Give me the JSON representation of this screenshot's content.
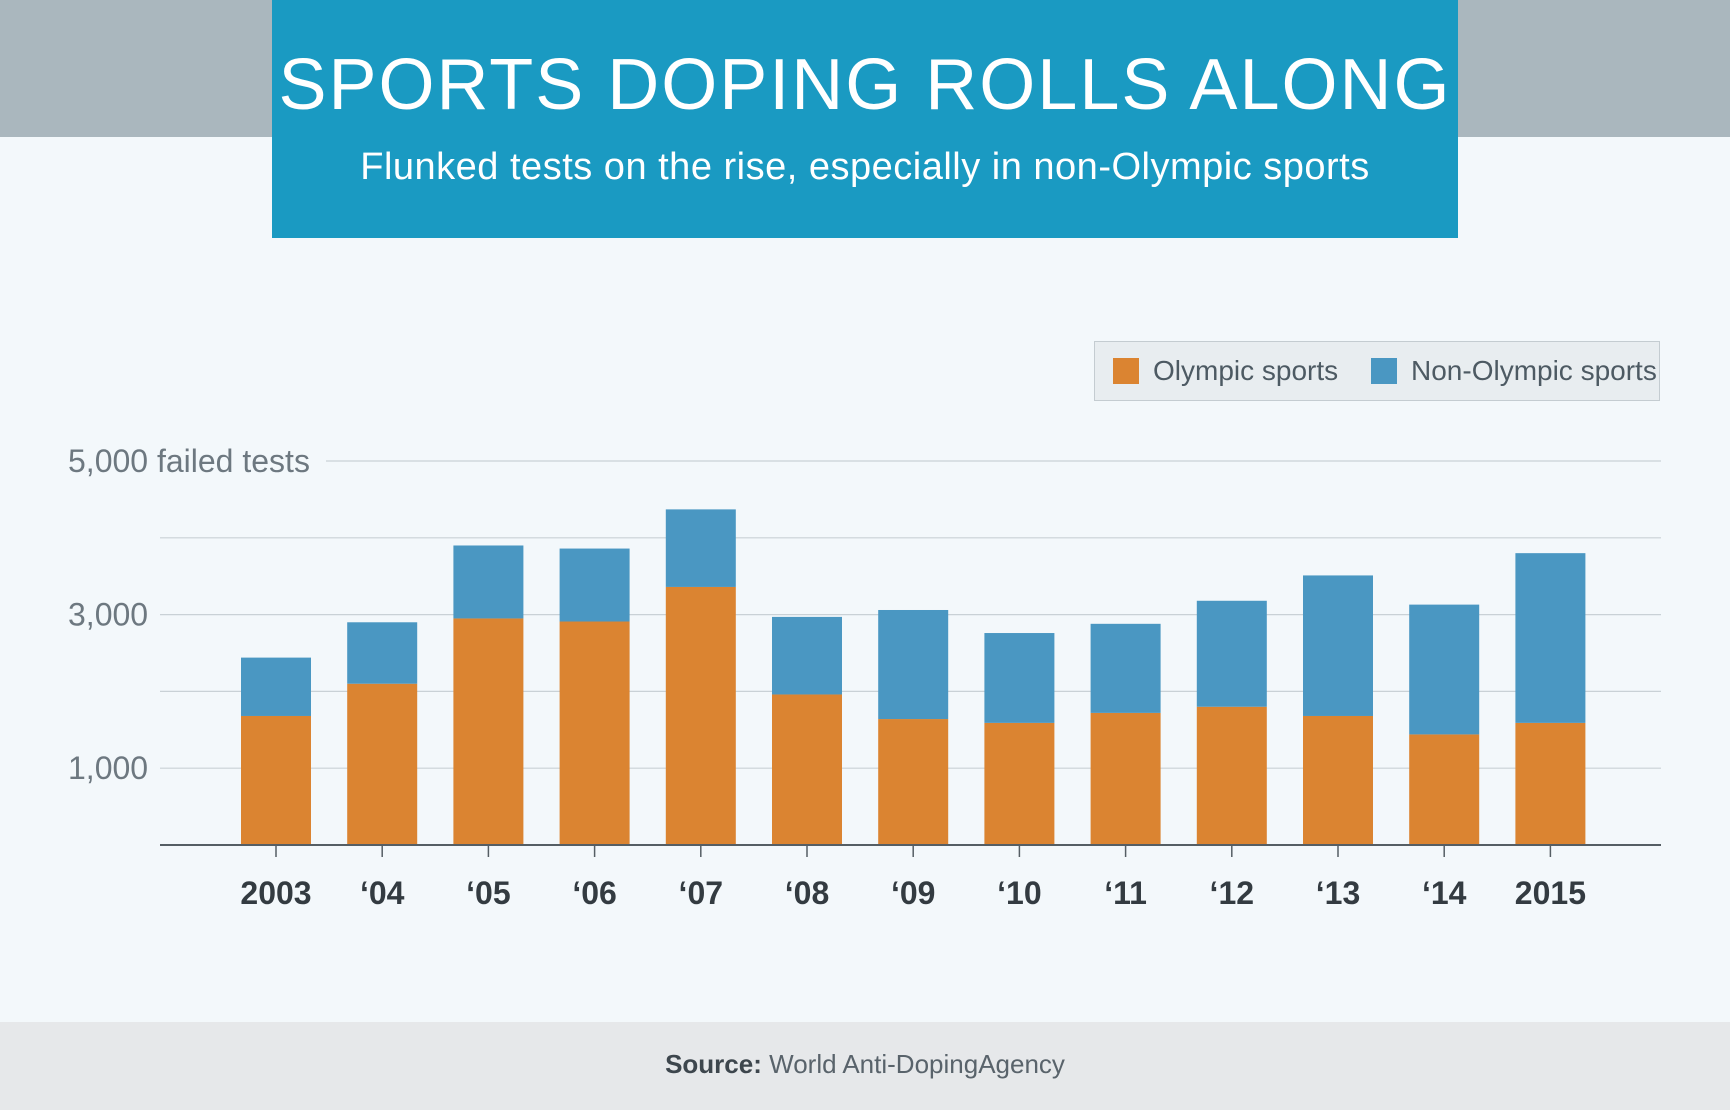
{
  "header": {
    "title": "SPORTS DOPING ROLLS ALONG",
    "subtitle": "Flunked tests on the rise, especially in non-Olympic sports"
  },
  "colors": {
    "header_bg": "#1a9ac2",
    "olympic": "#db8431",
    "non_olympic": "#4a97c2"
  },
  "legend": [
    {
      "label": "Olympic sports",
      "color": "#db8431"
    },
    {
      "label": "Non-Olympic sports",
      "color": "#4a97c2"
    }
  ],
  "footer": {
    "source_label": "Source:",
    "source_text": "World Anti-DopingAgency"
  },
  "chart_data": {
    "type": "bar",
    "stacked": true,
    "categories": [
      "2003",
      "‘04",
      "‘05",
      "‘06",
      "‘07",
      "‘08",
      "‘09",
      "‘10",
      "‘11",
      "‘12",
      "‘13",
      "‘14",
      "2015"
    ],
    "series": [
      {
        "name": "Olympic sports",
        "values": [
          1680,
          2100,
          2950,
          2910,
          3360,
          1960,
          1640,
          1590,
          1720,
          1800,
          1680,
          1440,
          1590
        ]
      },
      {
        "name": "Non-Olympic sports",
        "values": [
          760,
          800,
          950,
          950,
          1010,
          1010,
          1420,
          1170,
          1160,
          1380,
          1830,
          1690,
          2210
        ]
      }
    ],
    "ylim": [
      0,
      5000
    ],
    "gridlines": [
      1000,
      2000,
      3000,
      4000,
      5000
    ],
    "ytick_labels": [
      {
        "value": 5000,
        "label": "5,000 failed tests"
      },
      {
        "value": 3000,
        "label": "3,000"
      },
      {
        "value": 1000,
        "label": "1,000"
      }
    ],
    "legend_position": "top-right",
    "grid": true
  }
}
